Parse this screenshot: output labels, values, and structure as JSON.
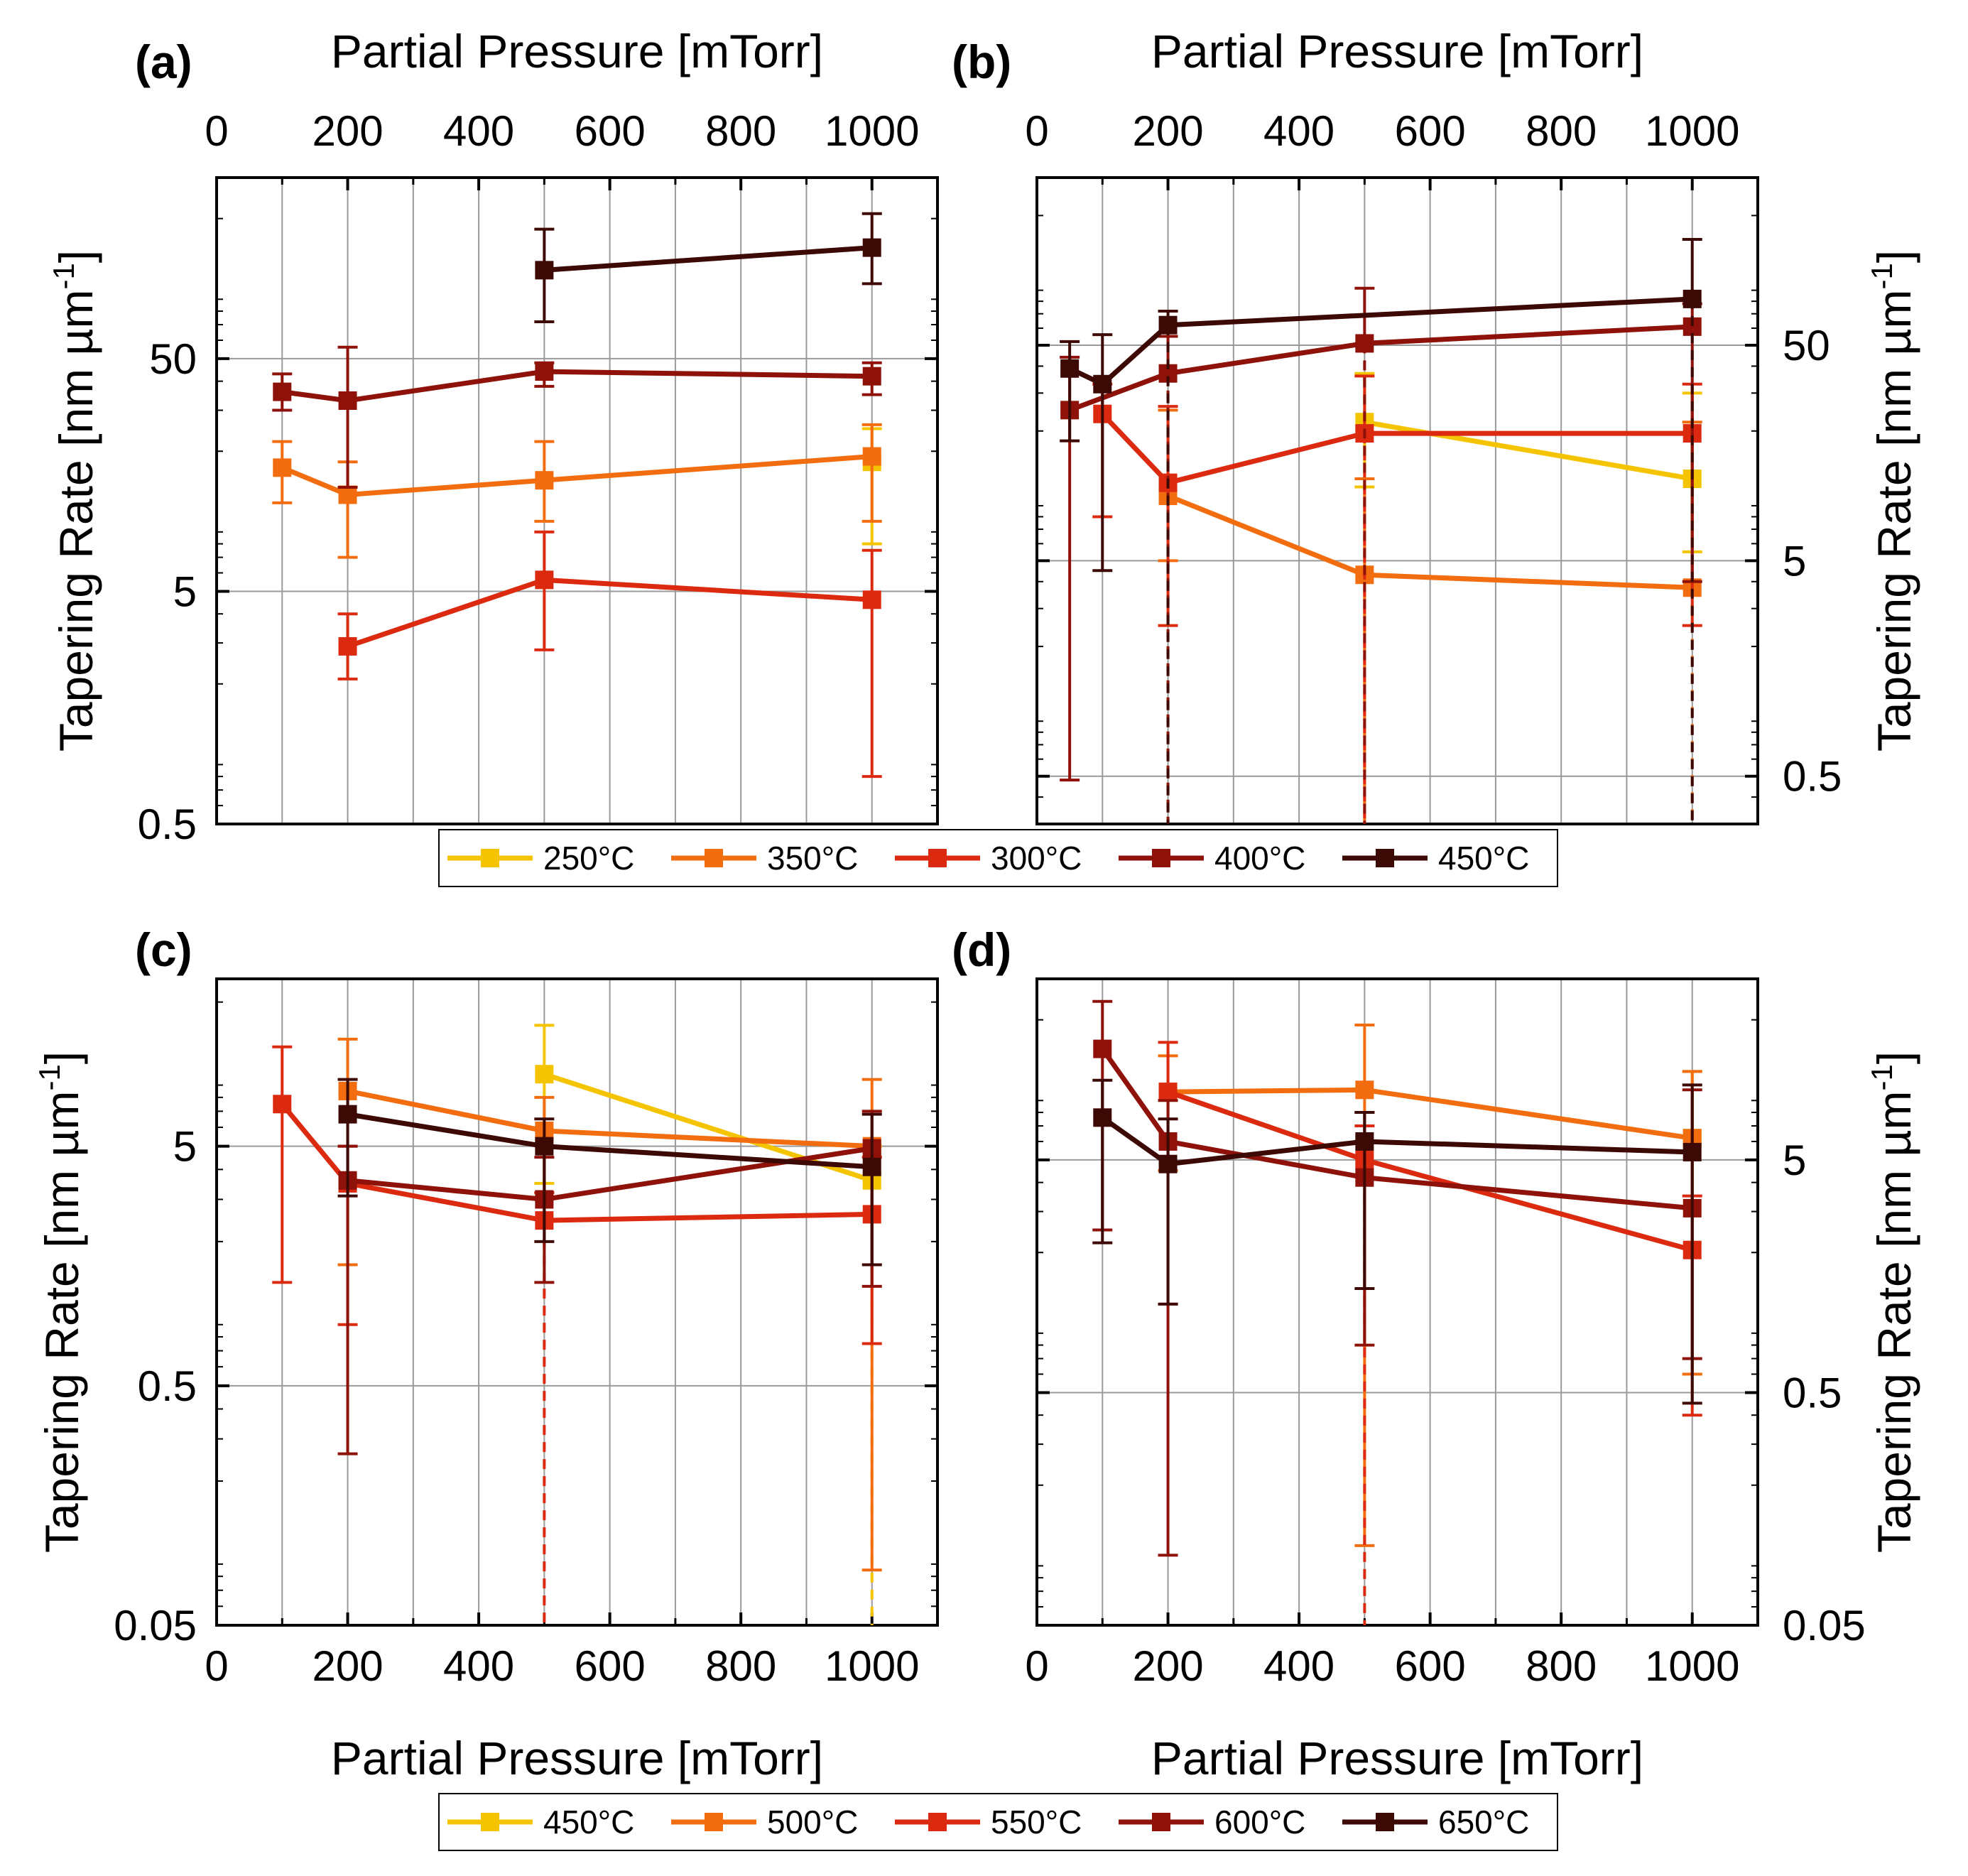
{
  "chart_data": [
    {
      "type": "line",
      "panel": "(a)",
      "xlabel": "Partial Pressure [mTorr]",
      "ylabel": "Tapering Rate [nm µm",
      "ylabel_sup": "-1",
      "x_axis_side": "top",
      "y_axis_side": "left",
      "xlim": [
        0,
        1100
      ],
      "x_ticks": [
        0,
        200,
        400,
        600,
        800,
        1000
      ],
      "x_tick_labels": [
        "0",
        "200",
        "400",
        "600",
        "800",
        "1000"
      ],
      "yscale": "log",
      "ylim": [
        0.5,
        300
      ],
      "y_ticks": [
        0.5,
        5,
        50
      ],
      "y_tick_labels": [
        "0.5",
        "5",
        "50"
      ],
      "grid": true,
      "series": [
        {
          "name": "250°C",
          "color": "#f5c400",
          "x": [
            1000
          ],
          "y": [
            18
          ],
          "err_lo": [
            8
          ],
          "err_hi": [
            25
          ]
        },
        {
          "name": "350°C",
          "color": "#f26d0f",
          "x": [
            100,
            200,
            500,
            1000
          ],
          "y": [
            17,
            13,
            15,
            19
          ],
          "err_lo": [
            12,
            7,
            10,
            10
          ],
          "err_hi": [
            22,
            18,
            22,
            26
          ]
        },
        {
          "name": "300°C",
          "color": "#dc2a10",
          "x": [
            200,
            500,
            1000
          ],
          "y": [
            2.9,
            5.6,
            4.6
          ],
          "err_lo": [
            2.1,
            2.8,
            0.8
          ],
          "err_hi": [
            4.0,
            9.0,
            7.5
          ]
        },
        {
          "name": "400°C",
          "color": "#8e1209",
          "x": [
            100,
            200,
            500,
            1000
          ],
          "y": [
            36,
            33,
            44,
            42
          ],
          "err_lo": [
            30,
            14,
            38,
            35
          ],
          "err_hi": [
            43,
            56,
            48,
            48
          ]
        },
        {
          "name": "450°C",
          "color": "#3d0905",
          "x": [
            500,
            1000
          ],
          "y": [
            120,
            150
          ],
          "err_lo": [
            72,
            105
          ],
          "err_hi": [
            180,
            210
          ]
        }
      ]
    },
    {
      "type": "line",
      "panel": "(b)",
      "xlabel": "Partial Pressure [mTorr]",
      "ylabel": "Tapering Rate [nm µm",
      "ylabel_sup": "-1",
      "x_axis_side": "top",
      "y_axis_side": "right",
      "xlim": [
        0,
        1100
      ],
      "x_ticks": [
        0,
        200,
        400,
        600,
        800,
        1000
      ],
      "x_tick_labels": [
        "0",
        "200",
        "400",
        "600",
        "800",
        "1000"
      ],
      "yscale": "log",
      "ylim": [
        0.3,
        300
      ],
      "y_ticks": [
        0.5,
        5,
        50
      ],
      "y_tick_labels": [
        "0.5",
        "5",
        "50"
      ],
      "grid": true,
      "series": [
        {
          "name": "250°C",
          "color": "#f5c400",
          "x": [
            500,
            1000
          ],
          "y": [
            22,
            12
          ],
          "err_lo": [
            11,
            5.5
          ],
          "err_hi": [
            37,
            30
          ]
        },
        {
          "name": "350°C",
          "color": "#f26d0f",
          "x": [
            200,
            500,
            1000
          ],
          "y": [
            10,
            4.3,
            3.75
          ],
          "err_lo": [
            5,
            0.3,
            0.3
          ],
          "err_hi": [
            25,
            12,
            22
          ]
        },
        {
          "name": "300°C",
          "color": "#dc2a10",
          "x": [
            100,
            200,
            500,
            1000
          ],
          "y": [
            24,
            11.5,
            19.5,
            19.5
          ],
          "err_lo": [
            8,
            2.5,
            0.3,
            2.5
          ],
          "err_hi": [
            33,
            26,
            36,
            33
          ]
        },
        {
          "name": "400°C",
          "color": "#8e1209",
          "x": [
            50,
            200,
            500,
            1000
          ],
          "y": [
            25,
            37,
            51,
            61
          ],
          "err_lo": [
            0.48,
            0.3,
            0.3,
            4.0
          ],
          "err_hi": [
            44,
            55,
            92,
            78
          ]
        },
        {
          "name": "450°C",
          "color": "#3d0905",
          "x": [
            50,
            100,
            200,
            1000
          ],
          "y": [
            39,
            33,
            62,
            82
          ],
          "err_lo": [
            18,
            4.5,
            0.3,
            0.3
          ],
          "err_hi": [
            52,
            56,
            72,
            155
          ]
        }
      ]
    },
    {
      "type": "line",
      "panel": "(c)",
      "xlabel": "Partial Pressure [mTorr]",
      "ylabel": "Tapering Rate [nm µm",
      "ylabel_sup": "-1",
      "x_axis_side": "bottom",
      "y_axis_side": "left",
      "xlim": [
        0,
        1100
      ],
      "x_ticks": [
        0,
        200,
        400,
        600,
        800,
        1000
      ],
      "x_tick_labels": [
        "0",
        "200",
        "400",
        "600",
        "800",
        "1000"
      ],
      "yscale": "log",
      "ylim": [
        0.05,
        25
      ],
      "y_ticks": [
        0.05,
        0.5,
        5
      ],
      "y_tick_labels": [
        "0.05",
        "0.5",
        "5"
      ],
      "grid": true,
      "series": [
        {
          "name": "450°C",
          "color": "#f5c400",
          "x": [
            500,
            1000
          ],
          "y": [
            10,
            3.6
          ],
          "err_lo": [
            3.5,
            0.05
          ],
          "err_hi": [
            16,
            5
          ]
        },
        {
          "name": "500°C",
          "color": "#f26d0f",
          "x": [
            200,
            500,
            1000
          ],
          "y": [
            8.5,
            5.8,
            5.0
          ],
          "err_lo": [
            1.6,
            3.2,
            0.085
          ],
          "err_hi": [
            14,
            8,
            9.5
          ]
        },
        {
          "name": "550°C",
          "color": "#dc2a10",
          "x": [
            100,
            200,
            500,
            1000
          ],
          "y": [
            7.5,
            3.5,
            2.45,
            2.6
          ],
          "err_lo": [
            1.35,
            0.9,
            0.05,
            0.75
          ],
          "err_hi": [
            13,
            5,
            3.2,
            4.5
          ]
        },
        {
          "name": "600°C",
          "color": "#8e1209",
          "x": [
            200,
            500,
            1000
          ],
          "y": [
            3.6,
            3.0,
            4.9
          ],
          "err_lo": [
            0.26,
            1.35,
            1.3
          ],
          "err_hi": [
            5,
            4.5,
            7
          ]
        },
        {
          "name": "650°C",
          "color": "#3d0905",
          "x": [
            200,
            500,
            1000
          ],
          "y": [
            6.8,
            5.0,
            4.1
          ],
          "err_lo": [
            3.1,
            2.0,
            1.6
          ],
          "err_hi": [
            9.5,
            6.5,
            6.8
          ]
        }
      ]
    },
    {
      "type": "line",
      "panel": "(d)",
      "xlabel": "Partial Pressure [mTorr]",
      "ylabel": "Tapering Rate [nm µm",
      "ylabel_sup": "-1",
      "x_axis_side": "bottom",
      "y_axis_side": "right",
      "xlim": [
        0,
        1100
      ],
      "x_ticks": [
        0,
        200,
        400,
        600,
        800,
        1000
      ],
      "x_tick_labels": [
        "0",
        "200",
        "400",
        "600",
        "800",
        "1000"
      ],
      "yscale": "log",
      "ylim": [
        0.05,
        30
      ],
      "y_ticks": [
        0.05,
        0.5,
        5
      ],
      "y_tick_labels": [
        "0.05",
        "0.5",
        "5"
      ],
      "grid": true,
      "series": [
        {
          "name": "450°C",
          "color": "#f5c400",
          "x": [
            1000
          ],
          "y": [
            6.2
          ],
          "err_lo": [
            0.6
          ],
          "err_hi": [
            12
          ]
        },
        {
          "name": "500°C",
          "color": "#f26d0f",
          "x": [
            200,
            500,
            1000
          ],
          "y": [
            9.8,
            10,
            6.2
          ],
          "err_lo": [
            4.5,
            0.11,
            0.6
          ],
          "err_hi": [
            14,
            19,
            12
          ]
        },
        {
          "name": "550°C",
          "color": "#dc2a10",
          "x": [
            200,
            500,
            1000
          ],
          "y": [
            9.8,
            5.0,
            2.05
          ],
          "err_lo": [
            1.2,
            0.05,
            0.4
          ],
          "err_hi": [
            16,
            7,
            3.5
          ]
        },
        {
          "name": "600°C",
          "color": "#8e1209",
          "x": [
            100,
            200,
            500,
            1000
          ],
          "y": [
            15,
            6.0,
            4.2,
            3.1
          ],
          "err_lo": [
            2.5,
            0.1,
            0.8,
            0.7
          ],
          "err_hi": [
            24,
            9,
            8,
            10
          ]
        },
        {
          "name": "650°C",
          "color": "#3d0905",
          "x": [
            100,
            200,
            500,
            1000
          ],
          "y": [
            7.6,
            4.8,
            6.0,
            5.4
          ],
          "err_lo": [
            2.2,
            1.2,
            1.4,
            0.45
          ],
          "err_hi": [
            11,
            7.5,
            8,
            10.5
          ]
        }
      ]
    }
  ],
  "legends": [
    {
      "entries": [
        "250°C",
        "350°C",
        "300°C",
        "400°C",
        "450°C"
      ],
      "colors": [
        "#f5c400",
        "#f26d0f",
        "#dc2a10",
        "#8e1209",
        "#3d0905"
      ]
    },
    {
      "entries": [
        "450°C",
        "500°C",
        "550°C",
        "600°C",
        "650°C"
      ],
      "colors": [
        "#f5c400",
        "#f26d0f",
        "#dc2a10",
        "#8e1209",
        "#3d0905"
      ]
    }
  ]
}
